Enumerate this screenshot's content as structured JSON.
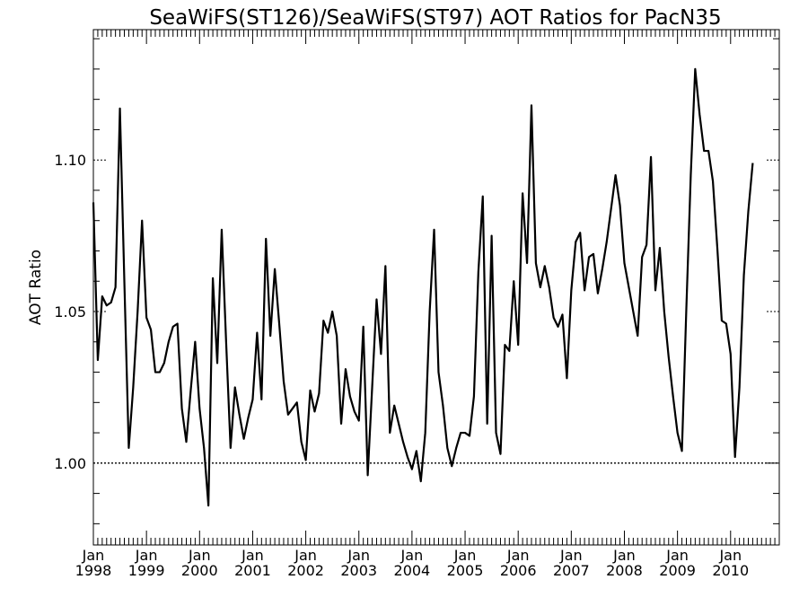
{
  "chart_data": {
    "type": "line",
    "title": "SeaWiFS(ST126)/SeaWiFS(ST97)  AOT Ratios for PacN35",
    "xlabel": "",
    "ylabel": "AOT Ratio",
    "xlim": [
      "1998-01",
      "2010-12"
    ],
    "ylim": [
      0.973,
      1.143
    ],
    "x_ticks": [
      {
        "month": "Jan",
        "year": "1998",
        "x": "1998-01"
      },
      {
        "month": "Jan",
        "year": "1999",
        "x": "1999-01"
      },
      {
        "month": "Jan",
        "year": "2000",
        "x": "2000-01"
      },
      {
        "month": "Jan",
        "year": "2001",
        "x": "2001-01"
      },
      {
        "month": "Jan",
        "year": "2002",
        "x": "2002-01"
      },
      {
        "month": "Jan",
        "year": "2003",
        "x": "2003-01"
      },
      {
        "month": "Jan",
        "year": "2004",
        "x": "2004-01"
      },
      {
        "month": "Jan",
        "year": "2005",
        "x": "2005-01"
      },
      {
        "month": "Jan",
        "year": "2006",
        "x": "2006-01"
      },
      {
        "month": "Jan",
        "year": "2007",
        "x": "2007-01"
      },
      {
        "month": "Jan",
        "year": "2008",
        "x": "2008-01"
      },
      {
        "month": "Jan",
        "year": "2009",
        "x": "2009-01"
      },
      {
        "month": "Jan",
        "year": "2010",
        "x": "2010-01"
      }
    ],
    "y_ticks": [
      {
        "value": 1.0,
        "label": "1.00"
      },
      {
        "value": 1.05,
        "label": "1.05"
      },
      {
        "value": 1.1,
        "label": "1.10"
      }
    ],
    "reference_lines": [
      {
        "y": 1.0,
        "style": "dotted",
        "full_width": true
      }
    ],
    "series": [
      {
        "x_start": "1998-01",
        "x_step": "1 month",
        "values": [
          1.086,
          1.034,
          1.055,
          1.052,
          1.053,
          1.058,
          1.117,
          1.06,
          1.005,
          1.025,
          1.05,
          1.08,
          1.048,
          1.044,
          1.03,
          1.03,
          1.033,
          1.04,
          1.045,
          1.046,
          1.018,
          1.007,
          1.024,
          1.04,
          1.018,
          1.005,
          0.986,
          1.061,
          1.033,
          1.077,
          1.04,
          1.005,
          1.025,
          1.016,
          1.008,
          1.015,
          1.021,
          1.043,
          1.021,
          1.074,
          1.042,
          1.064,
          1.046,
          1.027,
          1.016,
          1.018,
          1.02,
          1.007,
          1.001,
          1.024,
          1.017,
          1.023,
          1.047,
          1.043,
          1.05,
          1.042,
          1.013,
          1.031,
          1.022,
          1.017,
          1.014,
          1.045,
          0.996,
          1.025,
          1.054,
          1.036,
          1.065,
          1.01,
          1.019,
          1.013,
          1.007,
          1.002,
          0.998,
          1.004,
          0.994,
          1.01,
          1.05,
          1.077,
          1.03,
          1.019,
          1.005,
          0.999,
          1.005,
          1.01,
          1.01,
          1.009,
          1.022,
          1.063,
          1.088,
          1.013,
          1.075,
          1.01,
          1.003,
          1.039,
          1.037,
          1.06,
          1.039,
          1.089,
          1.066,
          1.118,
          1.066,
          1.058,
          1.065,
          1.058,
          1.048,
          1.045,
          1.049,
          1.028,
          1.057,
          1.073,
          1.076,
          1.057,
          1.068,
          1.069,
          1.056,
          1.064,
          1.073,
          1.084,
          1.095,
          1.085,
          1.066,
          1.058,
          1.05,
          1.042,
          1.068,
          1.072,
          1.101,
          1.057,
          1.071,
          1.05,
          1.035,
          1.022,
          1.01,
          1.004,
          1.051,
          1.095,
          1.13,
          1.115,
          1.103,
          1.103,
          1.093,
          1.071,
          1.047,
          1.046,
          1.036,
          1.002,
          1.025,
          1.062,
          1.083,
          1.099
        ]
      }
    ]
  }
}
